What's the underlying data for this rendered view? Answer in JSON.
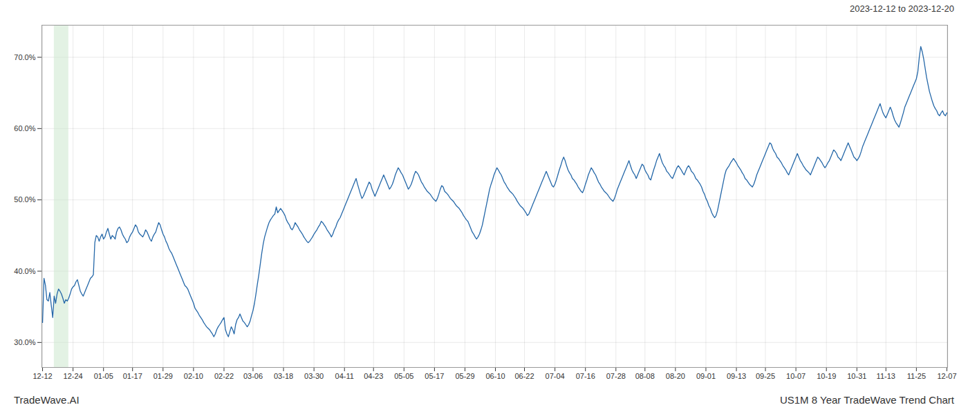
{
  "chart_data": {
    "type": "line",
    "title": "US1M 8 Year TradeWave Trend Chart",
    "subtitle": "2023-12-12 to 2023-12-20",
    "annotations": [
      "TradeWave.AI"
    ],
    "color": "#2467a8",
    "grid": true,
    "ylim": [
      0.265,
      0.745
    ],
    "yticks": [
      {
        "value": 0.3,
        "label": "30.0%"
      },
      {
        "value": 0.4,
        "label": "40.0%"
      },
      {
        "value": 0.5,
        "label": "50.0%"
      },
      {
        "value": 0.6,
        "label": "60.0%"
      },
      {
        "value": 0.7,
        "label": "70.0%"
      }
    ],
    "shaded_span": {
      "start": 8,
      "end": 18,
      "color": "#c8e6c9"
    },
    "categories": [
      "12-12",
      null,
      null,
      null,
      null,
      null,
      null,
      null,
      null,
      null,
      null,
      null,
      null,
      null,
      null,
      null,
      null,
      null,
      null,
      null,
      null,
      "12-24",
      null,
      null,
      null,
      null,
      null,
      null,
      null,
      null,
      null,
      null,
      null,
      null,
      null,
      null,
      null,
      null,
      null,
      null,
      null,
      null,
      "01-05",
      null,
      null,
      null,
      null,
      null,
      null,
      null,
      null,
      null,
      null,
      null,
      null,
      null,
      null,
      null,
      null,
      null,
      null,
      null,
      "01-17",
      null,
      null,
      null,
      null,
      null,
      null,
      null,
      null,
      null,
      null,
      null,
      null,
      null,
      null,
      null,
      null,
      null,
      null,
      null,
      null,
      "01-29",
      null,
      null,
      null,
      null,
      null,
      null,
      null,
      null,
      null,
      null,
      null,
      null,
      null,
      null,
      null,
      null,
      null,
      null,
      null,
      null,
      "02-10",
      null,
      null,
      null,
      null,
      null,
      null,
      null,
      null,
      null,
      null,
      null,
      null,
      null,
      null,
      null,
      null,
      null,
      null,
      null,
      null,
      "02-22",
      null,
      null,
      null,
      null,
      null,
      null,
      null,
      null,
      null,
      null,
      null,
      null,
      null,
      null,
      null,
      null,
      null,
      null,
      null,
      "03-06",
      null,
      null,
      null,
      null,
      null,
      null,
      null,
      null,
      null,
      null,
      null,
      null,
      null,
      null,
      null,
      null,
      null,
      null,
      null,
      null,
      "03-18",
      null,
      null,
      null,
      null,
      null,
      null,
      null,
      null,
      null,
      null,
      null,
      null,
      null,
      null,
      null,
      null,
      null,
      null,
      null,
      null,
      "03-30",
      null,
      null,
      null,
      null,
      null,
      null,
      null,
      null,
      null,
      null,
      null,
      null,
      null,
      null,
      null,
      null,
      null,
      null,
      null,
      null,
      "04-11",
      null,
      null,
      null,
      null,
      null,
      null,
      null,
      null,
      null,
      null,
      null,
      null,
      null,
      null,
      null,
      null,
      null,
      null,
      null,
      "04-23",
      null,
      null,
      null,
      null,
      null,
      null,
      null,
      null,
      null,
      null,
      null,
      null,
      null,
      null,
      null,
      null,
      null,
      null,
      null,
      null,
      "05-05",
      null,
      null,
      null,
      null,
      null,
      null,
      null,
      null,
      null,
      null,
      null,
      null,
      null,
      null,
      null,
      null,
      null,
      null,
      null,
      null,
      "05-17",
      null,
      null,
      null,
      null,
      null,
      null,
      null,
      null,
      null,
      null,
      null,
      null,
      null,
      null,
      null,
      null,
      null,
      null,
      null,
      null,
      "05-29",
      null,
      null,
      null,
      null,
      null,
      null,
      null,
      null,
      null,
      null,
      null,
      null,
      null,
      null,
      null,
      null,
      null,
      null,
      null,
      null,
      "06-10",
      null,
      null,
      null,
      null,
      null,
      null,
      null,
      null,
      null,
      null,
      null,
      null,
      null,
      null,
      null,
      null,
      null,
      null,
      null,
      "06-22",
      null,
      null,
      null,
      null,
      null,
      null,
      null,
      null,
      null,
      null,
      null,
      null,
      null,
      null,
      null,
      null,
      null,
      null,
      null,
      null,
      "07-04",
      null,
      null,
      null,
      null,
      null,
      null,
      null,
      null,
      null,
      null,
      null,
      null,
      null,
      null,
      null,
      null,
      null,
      null,
      null,
      null,
      "07-16",
      null,
      null,
      null,
      null,
      null,
      null,
      null,
      null,
      null,
      null,
      null,
      null,
      null,
      null,
      null,
      null,
      null,
      null,
      null,
      null,
      "07-28",
      null,
      null,
      null,
      null,
      null,
      null,
      null,
      null,
      null,
      null,
      null,
      null,
      null,
      null,
      null,
      null,
      null,
      null,
      null,
      "08-08",
      null,
      null,
      null,
      null,
      null,
      null,
      null,
      null,
      null,
      null,
      null,
      null,
      null,
      null,
      null,
      null,
      null,
      null,
      null,
      null,
      "08-20",
      null,
      null,
      null,
      null,
      null,
      null,
      null,
      null,
      null,
      null,
      null,
      null,
      null,
      null,
      null,
      null,
      null,
      null,
      null,
      null,
      "09-01",
      null,
      null,
      null,
      null,
      null,
      null,
      null,
      null,
      null,
      null,
      null,
      null,
      null,
      null,
      null,
      null,
      null,
      null,
      null,
      null,
      "09-13",
      null,
      null,
      null,
      null,
      null,
      null,
      null,
      null,
      null,
      null,
      null,
      null,
      null,
      null,
      null,
      null,
      null,
      null,
      null,
      "09-25",
      null,
      null,
      null,
      null,
      null,
      null,
      null,
      null,
      null,
      null,
      null,
      null,
      null,
      null,
      null,
      null,
      null,
      null,
      null,
      null,
      "10-07",
      null,
      null,
      null,
      null,
      null,
      null,
      null,
      null,
      null,
      null,
      null,
      null,
      null,
      null,
      null,
      null,
      null,
      null,
      null,
      null,
      "10-19",
      null,
      null,
      null,
      null,
      null,
      null,
      null,
      null,
      null,
      null,
      null,
      null,
      null,
      null,
      null,
      null,
      null,
      null,
      null,
      null,
      "10-31",
      null,
      null,
      null,
      null,
      null,
      null,
      null,
      null,
      null,
      null,
      null,
      null,
      null,
      null,
      null,
      null,
      null,
      null,
      null,
      "11-13",
      null,
      null,
      null,
      null,
      null,
      null,
      null,
      null,
      null,
      null,
      null,
      null,
      null,
      null,
      null,
      null,
      null,
      null,
      null,
      null,
      "11-25",
      null,
      null,
      null,
      null,
      null,
      null,
      null,
      null,
      null,
      null,
      null,
      null,
      null,
      null,
      null,
      null,
      null,
      null,
      null,
      null,
      "12-07"
    ],
    "values": [
      0.328,
      0.39,
      0.38,
      0.36,
      0.358,
      0.37,
      0.352,
      0.335,
      0.365,
      0.355,
      0.368,
      0.375,
      0.372,
      0.368,
      0.362,
      0.355,
      0.36,
      0.358,
      0.362,
      0.368,
      0.375,
      0.378,
      0.38,
      0.385,
      0.388,
      0.38,
      0.372,
      0.368,
      0.365,
      0.37,
      0.375,
      0.38,
      0.385,
      0.39,
      0.392,
      0.395,
      0.44,
      0.45,
      0.448,
      0.442,
      0.448,
      0.452,
      0.445,
      0.448,
      0.455,
      0.46,
      0.452,
      0.445,
      0.45,
      0.448,
      0.445,
      0.455,
      0.46,
      0.462,
      0.458,
      0.452,
      0.448,
      0.445,
      0.44,
      0.442,
      0.448,
      0.452,
      0.455,
      0.46,
      0.465,
      0.462,
      0.455,
      0.452,
      0.45,
      0.448,
      0.452,
      0.458,
      0.455,
      0.45,
      0.445,
      0.442,
      0.448,
      0.452,
      0.455,
      0.462,
      0.468,
      0.465,
      0.458,
      0.452,
      0.448,
      0.442,
      0.438,
      0.432,
      0.428,
      0.425,
      0.42,
      0.415,
      0.41,
      0.405,
      0.4,
      0.395,
      0.39,
      0.385,
      0.38,
      0.378,
      0.375,
      0.37,
      0.365,
      0.36,
      0.355,
      0.348,
      0.345,
      0.342,
      0.338,
      0.335,
      0.332,
      0.328,
      0.325,
      0.322,
      0.32,
      0.318,
      0.315,
      0.312,
      0.308,
      0.312,
      0.318,
      0.322,
      0.325,
      0.328,
      0.332,
      0.335,
      0.318,
      0.312,
      0.308,
      0.315,
      0.322,
      0.318,
      0.312,
      0.325,
      0.332,
      0.335,
      0.34,
      0.335,
      0.33,
      0.328,
      0.325,
      0.322,
      0.325,
      0.33,
      0.338,
      0.345,
      0.355,
      0.368,
      0.382,
      0.395,
      0.41,
      0.425,
      0.438,
      0.448,
      0.455,
      0.462,
      0.468,
      0.472,
      0.475,
      0.478,
      0.48,
      0.49,
      0.482,
      0.485,
      0.488,
      0.485,
      0.482,
      0.478,
      0.472,
      0.468,
      0.465,
      0.46,
      0.458,
      0.462,
      0.468,
      0.465,
      0.462,
      0.458,
      0.455,
      0.452,
      0.448,
      0.445,
      0.442,
      0.44,
      0.442,
      0.445,
      0.448,
      0.452,
      0.455,
      0.458,
      0.462,
      0.465,
      0.47,
      0.468,
      0.465,
      0.462,
      0.458,
      0.455,
      0.452,
      0.448,
      0.452,
      0.458,
      0.462,
      0.468,
      0.472,
      0.475,
      0.48,
      0.485,
      0.49,
      0.495,
      0.5,
      0.505,
      0.51,
      0.515,
      0.52,
      0.525,
      0.53,
      0.522,
      0.515,
      0.508,
      0.502,
      0.505,
      0.51,
      0.515,
      0.52,
      0.525,
      0.522,
      0.515,
      0.51,
      0.505,
      0.51,
      0.515,
      0.52,
      0.525,
      0.53,
      0.535,
      0.53,
      0.525,
      0.52,
      0.515,
      0.518,
      0.522,
      0.528,
      0.535,
      0.54,
      0.545,
      0.542,
      0.538,
      0.535,
      0.53,
      0.525,
      0.52,
      0.515,
      0.518,
      0.522,
      0.528,
      0.535,
      0.54,
      0.538,
      0.535,
      0.53,
      0.525,
      0.522,
      0.518,
      0.515,
      0.512,
      0.51,
      0.508,
      0.505,
      0.502,
      0.5,
      0.498,
      0.502,
      0.508,
      0.515,
      0.52,
      0.518,
      0.512,
      0.51,
      0.508,
      0.505,
      0.502,
      0.5,
      0.498,
      0.495,
      0.492,
      0.49,
      0.488,
      0.485,
      0.482,
      0.478,
      0.475,
      0.472,
      0.47,
      0.465,
      0.46,
      0.455,
      0.452,
      0.448,
      0.445,
      0.448,
      0.452,
      0.458,
      0.465,
      0.475,
      0.485,
      0.495,
      0.505,
      0.515,
      0.522,
      0.528,
      0.535,
      0.54,
      0.545,
      0.542,
      0.538,
      0.535,
      0.53,
      0.525,
      0.522,
      0.518,
      0.515,
      0.512,
      0.51,
      0.508,
      0.505,
      0.502,
      0.498,
      0.495,
      0.492,
      0.49,
      0.488,
      0.485,
      0.482,
      0.478,
      0.48,
      0.485,
      0.49,
      0.495,
      0.5,
      0.505,
      0.51,
      0.515,
      0.52,
      0.525,
      0.53,
      0.535,
      0.54,
      0.535,
      0.53,
      0.525,
      0.52,
      0.518,
      0.522,
      0.528,
      0.535,
      0.542,
      0.548,
      0.555,
      0.56,
      0.555,
      0.548,
      0.542,
      0.538,
      0.535,
      0.53,
      0.528,
      0.525,
      0.522,
      0.518,
      0.515,
      0.512,
      0.51,
      0.515,
      0.522,
      0.528,
      0.535,
      0.54,
      0.545,
      0.542,
      0.538,
      0.535,
      0.53,
      0.525,
      0.522,
      0.518,
      0.515,
      0.512,
      0.51,
      0.508,
      0.505,
      0.502,
      0.5,
      0.498,
      0.502,
      0.508,
      0.515,
      0.52,
      0.525,
      0.53,
      0.535,
      0.54,
      0.545,
      0.55,
      0.555,
      0.548,
      0.542,
      0.538,
      0.535,
      0.53,
      0.535,
      0.54,
      0.545,
      0.55,
      0.548,
      0.542,
      0.538,
      0.535,
      0.53,
      0.528,
      0.535,
      0.542,
      0.548,
      0.555,
      0.56,
      0.565,
      0.558,
      0.552,
      0.548,
      0.545,
      0.54,
      0.538,
      0.535,
      0.532,
      0.53,
      0.535,
      0.54,
      0.545,
      0.548,
      0.545,
      0.542,
      0.538,
      0.535,
      0.54,
      0.545,
      0.548,
      0.545,
      0.54,
      0.538,
      0.535,
      0.53,
      0.528,
      0.525,
      0.522,
      0.518,
      0.512,
      0.508,
      0.502,
      0.498,
      0.492,
      0.488,
      0.482,
      0.478,
      0.475,
      0.478,
      0.485,
      0.495,
      0.505,
      0.515,
      0.525,
      0.535,
      0.542,
      0.545,
      0.548,
      0.552,
      0.555,
      0.558,
      0.555,
      0.552,
      0.548,
      0.545,
      0.542,
      0.538,
      0.535,
      0.53,
      0.528,
      0.525,
      0.522,
      0.52,
      0.518,
      0.522,
      0.528,
      0.535,
      0.54,
      0.545,
      0.55,
      0.555,
      0.56,
      0.565,
      0.57,
      0.575,
      0.58,
      0.578,
      0.572,
      0.568,
      0.565,
      0.56,
      0.558,
      0.555,
      0.552,
      0.548,
      0.545,
      0.542,
      0.538,
      0.535,
      0.54,
      0.545,
      0.55,
      0.555,
      0.56,
      0.565,
      0.56,
      0.555,
      0.552,
      0.548,
      0.545,
      0.542,
      0.54,
      0.538,
      0.535,
      0.54,
      0.545,
      0.55,
      0.555,
      0.56,
      0.558,
      0.555,
      0.552,
      0.548,
      0.545,
      0.548,
      0.552,
      0.555,
      0.56,
      0.565,
      0.57,
      0.568,
      0.565,
      0.56,
      0.558,
      0.555,
      0.56,
      0.565,
      0.57,
      0.575,
      0.58,
      0.575,
      0.57,
      0.565,
      0.56,
      0.558,
      0.555,
      0.558,
      0.562,
      0.568,
      0.575,
      0.58,
      0.585,
      0.59,
      0.595,
      0.6,
      0.605,
      0.61,
      0.615,
      0.62,
      0.625,
      0.63,
      0.635,
      0.628,
      0.622,
      0.618,
      0.615,
      0.62,
      0.625,
      0.63,
      0.625,
      0.618,
      0.612,
      0.608,
      0.605,
      0.602,
      0.608,
      0.615,
      0.622,
      0.63,
      0.635,
      0.64,
      0.645,
      0.65,
      0.655,
      0.66,
      0.665,
      0.67,
      0.68,
      0.7,
      0.715,
      0.708,
      0.698,
      0.685,
      0.672,
      0.662,
      0.652,
      0.645,
      0.638,
      0.632,
      0.628,
      0.625,
      0.62,
      0.618,
      0.622,
      0.625,
      0.62,
      0.618,
      0.622
    ]
  }
}
